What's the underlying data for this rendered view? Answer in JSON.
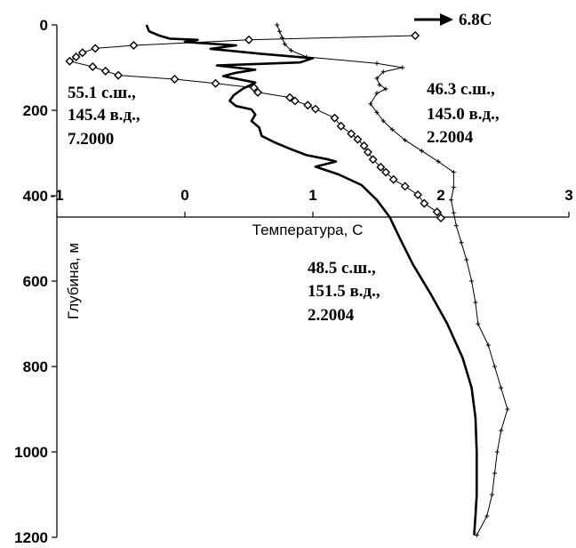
{
  "chart_data": {
    "type": "line",
    "title": "",
    "xlabel": "Температура, С",
    "ylabel": "Глубина, м",
    "xlim": [
      -1,
      3
    ],
    "ylim": [
      0,
      1200
    ],
    "y_inverted": true,
    "x_axis_crosses_y_at": 450,
    "x_ticks": [
      -1,
      0,
      1,
      2,
      3
    ],
    "y_ticks": [
      0,
      200,
      400,
      600,
      800,
      1000,
      1200
    ],
    "x_tick_labels": [
      "-1",
      "0",
      "1",
      "2",
      "3"
    ],
    "y_tick_labels": [
      "0",
      "200",
      "400",
      "600",
      "800",
      "1000",
      "1200"
    ],
    "grid": false,
    "legend": "none",
    "series": [
      {
        "name": "55.1 с.ш., 145.4 в.д., 7.2000",
        "marker": "diamond",
        "line_style": "thin",
        "points": [
          [
            1.8,
            25
          ],
          [
            0.5,
            35
          ],
          [
            -0.4,
            48
          ],
          [
            -0.7,
            55
          ],
          [
            -0.8,
            65
          ],
          [
            -0.85,
            75
          ],
          [
            -0.9,
            85
          ],
          [
            -0.72,
            98
          ],
          [
            -0.62,
            108
          ],
          [
            -0.52,
            118
          ],
          [
            -0.08,
            127
          ],
          [
            0.24,
            137
          ],
          [
            0.54,
            147
          ],
          [
            0.57,
            158
          ],
          [
            0.82,
            170
          ],
          [
            0.86,
            178
          ],
          [
            0.96,
            188
          ],
          [
            1.02,
            197
          ],
          [
            1.17,
            218
          ],
          [
            1.22,
            237
          ],
          [
            1.3,
            255
          ],
          [
            1.35,
            268
          ],
          [
            1.4,
            283
          ],
          [
            1.43,
            298
          ],
          [
            1.47,
            315
          ],
          [
            1.53,
            333
          ],
          [
            1.57,
            345
          ],
          [
            1.63,
            362
          ],
          [
            1.72,
            378
          ],
          [
            1.82,
            398
          ],
          [
            1.87,
            418
          ],
          [
            1.97,
            438
          ],
          [
            2.0,
            452
          ]
        ]
      },
      {
        "name": "46.3 с.ш., 145.0 в.д., 2.2004",
        "marker": "plus",
        "line_style": "thin",
        "points": [
          [
            0.72,
            0
          ],
          [
            0.74,
            15
          ],
          [
            0.76,
            30
          ],
          [
            0.78,
            45
          ],
          [
            0.83,
            60
          ],
          [
            0.95,
            75
          ],
          [
            1.5,
            90
          ],
          [
            1.7,
            100
          ],
          [
            1.55,
            110
          ],
          [
            1.5,
            125
          ],
          [
            1.52,
            140
          ],
          [
            1.57,
            150
          ],
          [
            1.5,
            160
          ],
          [
            1.45,
            185
          ],
          [
            1.5,
            205
          ],
          [
            1.55,
            225
          ],
          [
            1.62,
            245
          ],
          [
            1.72,
            270
          ],
          [
            1.85,
            295
          ],
          [
            1.98,
            320
          ],
          [
            2.1,
            345
          ],
          [
            2.1,
            380
          ],
          [
            2.08,
            410
          ],
          [
            2.1,
            440
          ],
          [
            2.12,
            470
          ],
          [
            2.16,
            510
          ],
          [
            2.2,
            550
          ],
          [
            2.24,
            600
          ],
          [
            2.27,
            650
          ],
          [
            2.29,
            700
          ],
          [
            2.37,
            750
          ],
          [
            2.42,
            800
          ],
          [
            2.47,
            850
          ],
          [
            2.52,
            900
          ],
          [
            2.47,
            950
          ],
          [
            2.44,
            1000
          ],
          [
            2.42,
            1050
          ],
          [
            2.4,
            1100
          ],
          [
            2.36,
            1150
          ],
          [
            2.28,
            1195
          ]
        ]
      },
      {
        "name": "48.5 с.ш., 151.5 в.д., 2.2004",
        "marker": "none",
        "line_style": "thick",
        "points": [
          [
            -0.3,
            0
          ],
          [
            -0.28,
            15
          ],
          [
            -0.2,
            25
          ],
          [
            -0.12,
            32
          ],
          [
            0.1,
            35
          ],
          [
            0.0,
            40
          ],
          [
            0.4,
            48
          ],
          [
            0.2,
            56
          ],
          [
            0.6,
            68
          ],
          [
            1.0,
            78
          ],
          [
            0.9,
            88
          ],
          [
            0.25,
            95
          ],
          [
            0.55,
            105
          ],
          [
            0.4,
            112
          ],
          [
            0.3,
            120
          ],
          [
            0.55,
            135
          ],
          [
            0.45,
            150
          ],
          [
            0.38,
            165
          ],
          [
            0.35,
            178
          ],
          [
            0.4,
            190
          ],
          [
            0.52,
            198
          ],
          [
            0.55,
            210
          ],
          [
            0.52,
            225
          ],
          [
            0.58,
            240
          ],
          [
            0.6,
            260
          ],
          [
            0.7,
            275
          ],
          [
            0.82,
            290
          ],
          [
            0.95,
            305
          ],
          [
            1.12,
            315
          ],
          [
            1.18,
            320
          ],
          [
            1.02,
            332
          ],
          [
            1.2,
            350
          ],
          [
            1.38,
            375
          ],
          [
            1.5,
            410
          ],
          [
            1.6,
            450
          ],
          [
            1.68,
            500
          ],
          [
            1.78,
            560
          ],
          [
            1.92,
            630
          ],
          [
            2.05,
            700
          ],
          [
            2.17,
            780
          ],
          [
            2.24,
            850
          ],
          [
            2.27,
            920
          ],
          [
            2.28,
            1000
          ],
          [
            2.28,
            1100
          ],
          [
            2.27,
            1150
          ],
          [
            2.26,
            1195
          ]
        ]
      }
    ],
    "annotations": [
      {
        "name": "ann-55",
        "lines": [
          "55.1 с.ш.,",
          "145.4 в.д.,",
          "7.2000"
        ]
      },
      {
        "name": "ann-46",
        "lines": [
          "46.3 с.ш.,",
          "145.0 в.д.,",
          "2.2004"
        ]
      },
      {
        "name": "ann-48",
        "lines": [
          "48.5 с.ш.,",
          "151.5 в.д.,",
          "2.2004"
        ]
      }
    ],
    "arrow_label": "6.8C"
  }
}
